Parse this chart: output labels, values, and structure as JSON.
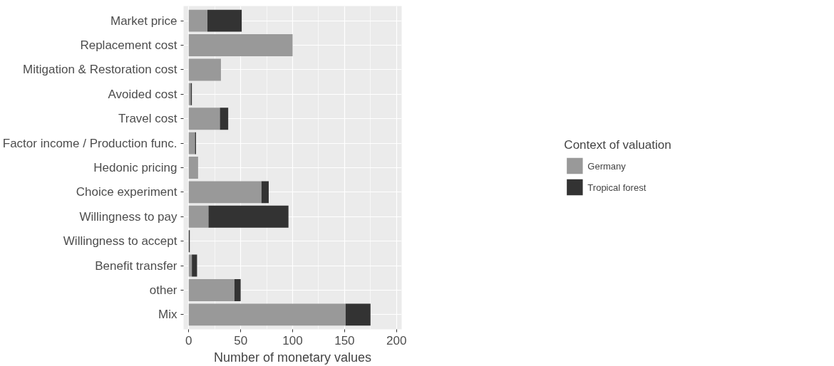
{
  "chart_data": {
    "type": "bar",
    "orientation": "horizontal",
    "stacked": true,
    "xlabel": "Number of monetary values",
    "legend_title": "Context of valuation",
    "legend": "right",
    "grid": true,
    "categories": [
      "Market price",
      "Replacement cost",
      "Mitigation & Restoration cost",
      "Avoided cost",
      "Travel cost",
      "Factor income / Production func.",
      "Hedonic pricing",
      "Choice experiment",
      "Willingness to pay",
      "Willingness to accept",
      "Benefit transfer",
      "other",
      "Mix"
    ],
    "series": [
      {
        "name": "Germany",
        "color": "#999999",
        "values": [
          18,
          100,
          31,
          2,
          30,
          6,
          9,
          70,
          19,
          0,
          3,
          44,
          151
        ]
      },
      {
        "name": "Tropical forest",
        "color": "#333333",
        "values": [
          33,
          0,
          0,
          1,
          8,
          1,
          0,
          7,
          77,
          1,
          5,
          6,
          24
        ]
      }
    ],
    "xlim": [
      -5,
      205
    ],
    "xticks": [
      0,
      50,
      100,
      150,
      200
    ]
  }
}
